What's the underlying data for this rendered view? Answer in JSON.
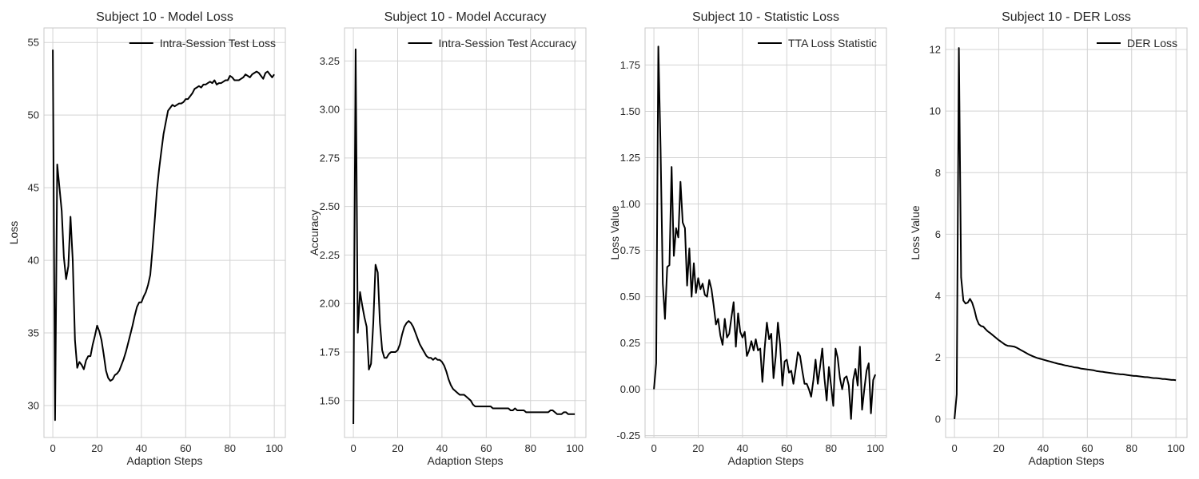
{
  "figure": {
    "background": "#ffffff",
    "line_color": "#000000",
    "grid": true,
    "legend_position": "top-right"
  },
  "chart_data": [
    {
      "type": "line",
      "title": "Subject 10 - Model Loss",
      "xlabel": "Adaption Steps",
      "ylabel": "Loss",
      "xlim": [
        -4,
        105
      ],
      "ylim": [
        27.8,
        56.0
      ],
      "xticks": [
        0,
        20,
        40,
        60,
        80,
        100
      ],
      "yticks": [
        30,
        35,
        40,
        45,
        50,
        55
      ],
      "series": [
        {
          "name": "Intra-Session Test Loss",
          "x": [
            0,
            1,
            2,
            3,
            4,
            5,
            6,
            7,
            8,
            9,
            10,
            11,
            12,
            13,
            14,
            15,
            16,
            17,
            18,
            19,
            20,
            21,
            22,
            23,
            24,
            25,
            26,
            27,
            28,
            29,
            30,
            31,
            32,
            33,
            34,
            35,
            36,
            37,
            38,
            39,
            40,
            41,
            42,
            43,
            44,
            45,
            46,
            47,
            48,
            49,
            50,
            51,
            52,
            53,
            54,
            55,
            56,
            57,
            58,
            59,
            60,
            61,
            62,
            63,
            64,
            65,
            66,
            67,
            68,
            69,
            70,
            71,
            72,
            73,
            74,
            75,
            76,
            77,
            78,
            79,
            80,
            81,
            82,
            83,
            84,
            85,
            86,
            87,
            88,
            89,
            90,
            91,
            92,
            93,
            94,
            95,
            96,
            97,
            98,
            99,
            100
          ],
          "y": [
            54.5,
            29.0,
            46.6,
            45.0,
            43.4,
            40.2,
            38.7,
            39.6,
            43.0,
            40.0,
            34.5,
            32.6,
            33.0,
            32.8,
            32.5,
            33.1,
            33.4,
            33.4,
            34.2,
            34.8,
            35.5,
            35.1,
            34.5,
            33.5,
            32.4,
            31.9,
            31.7,
            31.8,
            32.1,
            32.2,
            32.4,
            32.8,
            33.2,
            33.7,
            34.3,
            34.9,
            35.5,
            36.2,
            36.8,
            37.1,
            37.1,
            37.5,
            37.8,
            38.3,
            39.0,
            40.8,
            42.7,
            44.8,
            46.3,
            47.5,
            48.7,
            49.5,
            50.3,
            50.5,
            50.7,
            50.6,
            50.7,
            50.8,
            50.8,
            50.9,
            51.1,
            51.1,
            51.3,
            51.5,
            51.8,
            51.9,
            52.0,
            51.9,
            52.1,
            52.1,
            52.2,
            52.3,
            52.2,
            52.4,
            52.1,
            52.2,
            52.2,
            52.3,
            52.4,
            52.4,
            52.7,
            52.6,
            52.4,
            52.4,
            52.4,
            52.5,
            52.6,
            52.8,
            52.7,
            52.6,
            52.8,
            52.9,
            53.0,
            52.9,
            52.7,
            52.5,
            52.9,
            53.0,
            52.8,
            52.6,
            52.8
          ]
        }
      ]
    },
    {
      "type": "line",
      "title": "Subject 10 - Model Accuracy",
      "xlabel": "Adaption Steps",
      "ylabel": "Accuracy",
      "xlim": [
        -4,
        105
      ],
      "ylim": [
        1.31,
        3.42
      ],
      "xticks": [
        0,
        20,
        40,
        60,
        80,
        100
      ],
      "yticks": [
        1.5,
        1.75,
        2.0,
        2.25,
        2.5,
        2.75,
        3.0,
        3.25
      ],
      "series": [
        {
          "name": "Intra-Session Test Accuracy",
          "x": [
            0,
            1,
            2,
            3,
            4,
            5,
            6,
            7,
            8,
            9,
            10,
            11,
            12,
            13,
            14,
            15,
            16,
            17,
            18,
            19,
            20,
            21,
            22,
            23,
            24,
            25,
            26,
            27,
            28,
            29,
            30,
            31,
            32,
            33,
            34,
            35,
            36,
            37,
            38,
            39,
            40,
            41,
            42,
            43,
            44,
            45,
            46,
            47,
            48,
            49,
            50,
            51,
            52,
            53,
            54,
            55,
            56,
            57,
            58,
            59,
            60,
            61,
            62,
            63,
            64,
            65,
            66,
            67,
            68,
            69,
            70,
            71,
            72,
            73,
            74,
            75,
            76,
            77,
            78,
            79,
            80,
            81,
            82,
            83,
            84,
            85,
            86,
            87,
            88,
            89,
            90,
            91,
            92,
            93,
            94,
            95,
            96,
            97,
            98,
            99,
            100
          ],
          "y": [
            1.38,
            3.31,
            1.85,
            2.06,
            1.99,
            1.93,
            1.88,
            1.66,
            1.69,
            1.9,
            2.2,
            2.16,
            1.9,
            1.76,
            1.72,
            1.72,
            1.74,
            1.75,
            1.75,
            1.75,
            1.76,
            1.79,
            1.84,
            1.88,
            1.9,
            1.91,
            1.9,
            1.88,
            1.85,
            1.82,
            1.79,
            1.77,
            1.75,
            1.73,
            1.72,
            1.72,
            1.71,
            1.72,
            1.71,
            1.71,
            1.7,
            1.68,
            1.65,
            1.61,
            1.58,
            1.56,
            1.55,
            1.54,
            1.53,
            1.53,
            1.53,
            1.52,
            1.51,
            1.5,
            1.48,
            1.47,
            1.47,
            1.47,
            1.47,
            1.47,
            1.47,
            1.47,
            1.47,
            1.46,
            1.46,
            1.46,
            1.46,
            1.46,
            1.46,
            1.46,
            1.46,
            1.45,
            1.45,
            1.46,
            1.45,
            1.45,
            1.45,
            1.45,
            1.44,
            1.44,
            1.44,
            1.44,
            1.44,
            1.44,
            1.44,
            1.44,
            1.44,
            1.44,
            1.44,
            1.45,
            1.45,
            1.44,
            1.43,
            1.43,
            1.43,
            1.44,
            1.44,
            1.43,
            1.43,
            1.43,
            1.43
          ]
        }
      ]
    },
    {
      "type": "line",
      "title": "Subject 10 - Statistic Loss",
      "xlabel": "Adaption Steps",
      "ylabel": "Loss Value",
      "xlim": [
        -4,
        105
      ],
      "ylim": [
        -0.26,
        1.95
      ],
      "xticks": [
        0,
        20,
        40,
        60,
        80,
        100
      ],
      "yticks": [
        -0.25,
        0.0,
        0.25,
        0.5,
        0.75,
        1.0,
        1.25,
        1.5,
        1.75
      ],
      "series": [
        {
          "name": "TTA Loss Statistic",
          "x": [
            0,
            1,
            2,
            3,
            4,
            5,
            6,
            7,
            8,
            9,
            10,
            11,
            12,
            13,
            14,
            15,
            16,
            17,
            18,
            19,
            20,
            21,
            22,
            23,
            24,
            25,
            26,
            27,
            28,
            29,
            30,
            31,
            32,
            33,
            34,
            35,
            36,
            37,
            38,
            39,
            40,
            41,
            42,
            43,
            44,
            45,
            46,
            47,
            48,
            49,
            50,
            51,
            52,
            53,
            54,
            55,
            56,
            57,
            58,
            59,
            60,
            61,
            62,
            63,
            64,
            65,
            66,
            67,
            68,
            69,
            70,
            71,
            72,
            73,
            74,
            75,
            76,
            77,
            78,
            79,
            80,
            81,
            82,
            83,
            84,
            85,
            86,
            87,
            88,
            89,
            90,
            91,
            92,
            93,
            94,
            95,
            96,
            97,
            98,
            99,
            100
          ],
          "y": [
            0.0,
            0.14,
            1.85,
            1.3,
            0.57,
            0.38,
            0.66,
            0.67,
            1.2,
            0.72,
            0.87,
            0.82,
            1.12,
            0.9,
            0.87,
            0.56,
            0.76,
            0.5,
            0.68,
            0.52,
            0.6,
            0.54,
            0.57,
            0.51,
            0.5,
            0.59,
            0.54,
            0.45,
            0.35,
            0.38,
            0.29,
            0.24,
            0.38,
            0.28,
            0.3,
            0.39,
            0.47,
            0.23,
            0.41,
            0.31,
            0.28,
            0.31,
            0.18,
            0.21,
            0.26,
            0.21,
            0.27,
            0.21,
            0.22,
            0.04,
            0.22,
            0.36,
            0.27,
            0.3,
            0.06,
            0.18,
            0.36,
            0.24,
            0.02,
            0.15,
            0.16,
            0.09,
            0.1,
            0.03,
            0.11,
            0.2,
            0.18,
            0.1,
            0.03,
            0.03,
            0.0,
            -0.04,
            0.05,
            0.16,
            0.03,
            0.12,
            0.22,
            0.06,
            -0.06,
            0.12,
            0.02,
            -0.09,
            0.22,
            0.17,
            0.06,
            0.0,
            0.06,
            0.07,
            0.02,
            -0.16,
            0.05,
            0.11,
            0.02,
            0.23,
            -0.11,
            0.0,
            0.1,
            0.14,
            -0.13,
            0.05,
            0.08
          ]
        }
      ]
    },
    {
      "type": "line",
      "title": "Subject 10 - DER Loss",
      "xlabel": "Adaption Steps",
      "ylabel": "Loss Value",
      "xlim": [
        -4,
        105
      ],
      "ylim": [
        -0.6,
        12.7
      ],
      "xticks": [
        0,
        20,
        40,
        60,
        80,
        100
      ],
      "yticks": [
        0,
        2,
        4,
        6,
        8,
        10,
        12
      ],
      "series": [
        {
          "name": "DER Loss",
          "x": [
            0,
            1,
            2,
            3,
            4,
            5,
            6,
            7,
            8,
            9,
            10,
            11,
            12,
            13,
            14,
            15,
            16,
            17,
            18,
            19,
            20,
            21,
            22,
            23,
            24,
            25,
            26,
            27,
            28,
            29,
            30,
            31,
            32,
            33,
            34,
            35,
            36,
            37,
            38,
            39,
            40,
            41,
            42,
            43,
            44,
            45,
            46,
            47,
            48,
            49,
            50,
            51,
            52,
            53,
            54,
            55,
            56,
            57,
            58,
            59,
            60,
            61,
            62,
            63,
            64,
            65,
            66,
            67,
            68,
            69,
            70,
            71,
            72,
            73,
            74,
            75,
            76,
            77,
            78,
            79,
            80,
            81,
            82,
            83,
            84,
            85,
            86,
            87,
            88,
            89,
            90,
            91,
            92,
            93,
            94,
            95,
            96,
            97,
            98,
            99,
            100
          ],
          "y": [
            0.0,
            0.8,
            12.05,
            4.6,
            3.85,
            3.75,
            3.78,
            3.9,
            3.78,
            3.55,
            3.25,
            3.08,
            3.02,
            3.0,
            2.92,
            2.85,
            2.8,
            2.74,
            2.68,
            2.62,
            2.56,
            2.51,
            2.46,
            2.41,
            2.38,
            2.37,
            2.36,
            2.35,
            2.32,
            2.28,
            2.24,
            2.2,
            2.16,
            2.12,
            2.08,
            2.05,
            2.02,
            1.99,
            1.97,
            1.95,
            1.93,
            1.91,
            1.89,
            1.87,
            1.85,
            1.83,
            1.81,
            1.79,
            1.78,
            1.76,
            1.74,
            1.73,
            1.71,
            1.7,
            1.68,
            1.67,
            1.66,
            1.64,
            1.63,
            1.62,
            1.61,
            1.6,
            1.59,
            1.58,
            1.56,
            1.55,
            1.54,
            1.53,
            1.52,
            1.51,
            1.5,
            1.49,
            1.48,
            1.47,
            1.46,
            1.45,
            1.45,
            1.44,
            1.43,
            1.42,
            1.41,
            1.4,
            1.4,
            1.39,
            1.38,
            1.37,
            1.36,
            1.36,
            1.35,
            1.34,
            1.33,
            1.33,
            1.32,
            1.31,
            1.3,
            1.3,
            1.29,
            1.28,
            1.27,
            1.27,
            1.26
          ]
        }
      ]
    }
  ]
}
